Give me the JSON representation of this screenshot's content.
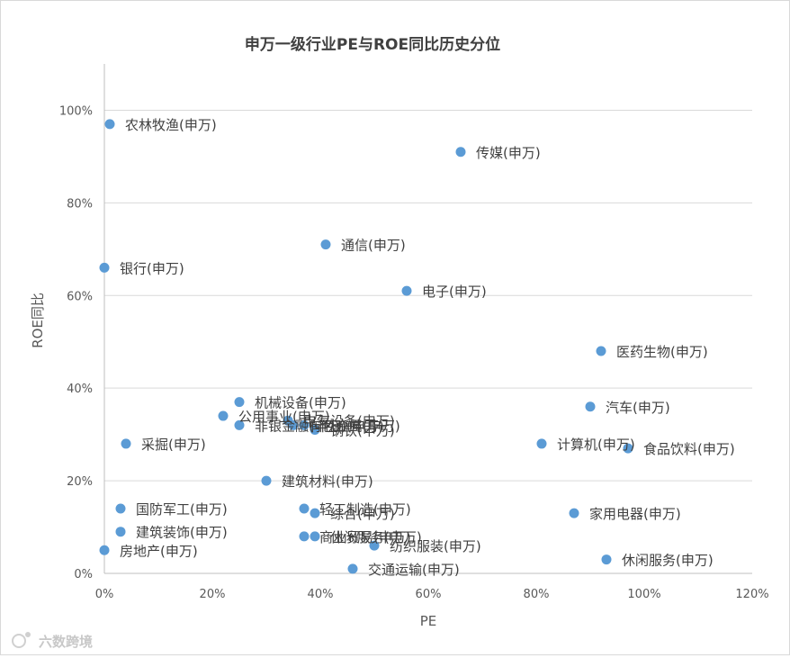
{
  "chart_data": {
    "type": "scatter",
    "title": "申万一级行业PE与ROE同比历史分位",
    "xlabel": "PE",
    "ylabel": "ROE同比",
    "xlim": [
      0,
      1.2
    ],
    "ylim": [
      0,
      1.1
    ],
    "x_ticks": [
      "0%",
      "20%",
      "40%",
      "60%",
      "80%",
      "100%",
      "120%"
    ],
    "y_ticks": [
      "0%",
      "20%",
      "40%",
      "60%",
      "80%",
      "100%"
    ],
    "grid": "horizontal",
    "marker_color": "#5b9bd5",
    "points": [
      {
        "label": "农林牧渔(申万)",
        "x": 0.01,
        "y": 0.97
      },
      {
        "label": "传媒(申万)",
        "x": 0.66,
        "y": 0.91
      },
      {
        "label": "通信(申万)",
        "x": 0.41,
        "y": 0.71
      },
      {
        "label": "银行(申万)",
        "x": 0.0,
        "y": 0.66
      },
      {
        "label": "电子(申万)",
        "x": 0.56,
        "y": 0.61
      },
      {
        "label": "医药生物(申万)",
        "x": 0.92,
        "y": 0.48
      },
      {
        "label": "机械设备(申万)",
        "x": 0.25,
        "y": 0.37
      },
      {
        "label": "汽车(申万)",
        "x": 0.9,
        "y": 0.36
      },
      {
        "label": "公用事业(申万)",
        "x": 0.22,
        "y": 0.34
      },
      {
        "label": "电气设备(申万)",
        "x": 0.34,
        "y": 0.33
      },
      {
        "label": "非银金融(申万)",
        "x": 0.25,
        "y": 0.32
      },
      {
        "label": "化工(申万)",
        "x": 0.37,
        "y": 0.32
      },
      {
        "label": "有色金属(申万)",
        "x": 0.35,
        "y": 0.32
      },
      {
        "label": "钢铁(申万)",
        "x": 0.39,
        "y": 0.31
      },
      {
        "label": "采掘(申万)",
        "x": 0.04,
        "y": 0.28
      },
      {
        "label": "计算机(申万)",
        "x": 0.81,
        "y": 0.28
      },
      {
        "label": "食品饮料(申万)",
        "x": 0.97,
        "y": 0.27
      },
      {
        "label": "建筑材料(申万)",
        "x": 0.3,
        "y": 0.2
      },
      {
        "label": "国防军工(申万)",
        "x": 0.03,
        "y": 0.14
      },
      {
        "label": "轻工制造(申万)",
        "x": 0.37,
        "y": 0.14
      },
      {
        "label": "综合(申万)",
        "x": 0.39,
        "y": 0.13
      },
      {
        "label": "家用电器(申万)",
        "x": 0.87,
        "y": 0.13
      },
      {
        "label": "建筑装饰(申万)",
        "x": 0.03,
        "y": 0.09
      },
      {
        "label": "商业贸易(申万)",
        "x": 0.37,
        "y": 0.08
      },
      {
        "label": "休闲服务(申万)",
        "x": 0.39,
        "y": 0.08
      },
      {
        "label": "纺织服装(申万)",
        "x": 0.5,
        "y": 0.06
      },
      {
        "label": "房地产(申万)",
        "x": 0.0,
        "y": 0.05
      },
      {
        "label": "休闲服务(申万)",
        "x": 0.93,
        "y": 0.03
      },
      {
        "label": "交通运输(申万)",
        "x": 0.46,
        "y": 0.01
      }
    ]
  },
  "watermark": "六数跨境"
}
